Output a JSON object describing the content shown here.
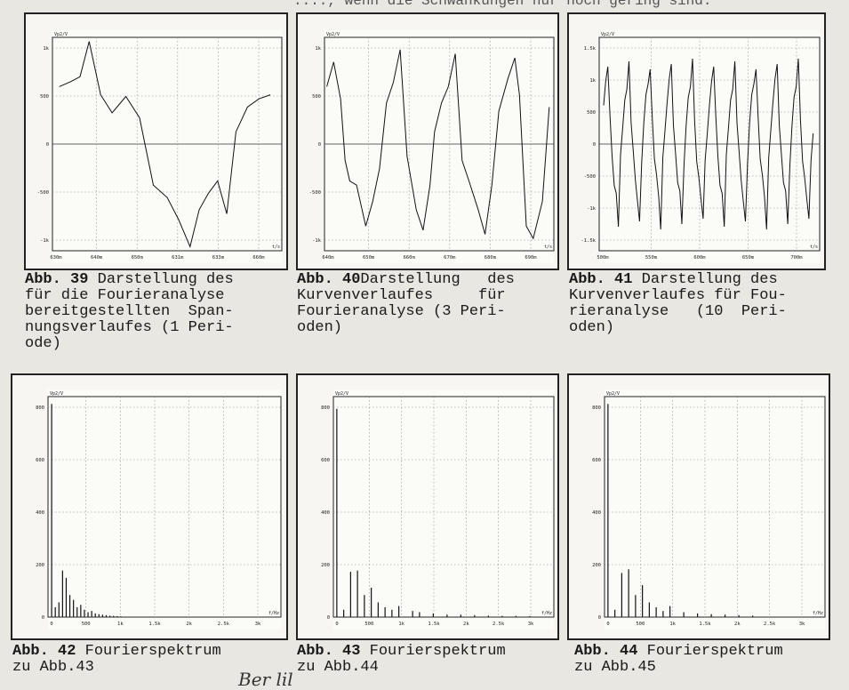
{
  "page": {
    "top_text": "...., wenn die Schwankungen nur noch gering sind.",
    "signature": "Ber lil"
  },
  "figures": [
    {
      "id": "abb39",
      "caption_num": "Abb. 39",
      "caption_lines": [
        " Darstellung des",
        "für die Fourieranalyse",
        "bereitgestellten  Span-",
        "nungsverlaufes (1 Peri-",
        "ode)"
      ],
      "unit_y": "Vp2/V",
      "unit_x": "t/s",
      "y_ticks": [
        "1k",
        "500",
        "0",
        "-500",
        "-1k"
      ],
      "x_ticks": [
        "630m",
        "640m",
        "650m",
        "631m",
        "633m",
        "660m"
      ]
    },
    {
      "id": "abb40",
      "caption_num": "Abb. 40",
      "caption_lines": [
        "Darstellung   des",
        "Kurvenverlaufes     für",
        "Fourieranalyse (3 Peri-",
        "oden)"
      ],
      "unit_y": "Vp2/V",
      "unit_x": "t/s",
      "y_ticks": [
        "1k",
        "500",
        "0",
        "-500",
        "-1k"
      ],
      "x_ticks": [
        "640m",
        "650m",
        "660m",
        "670m",
        "680m",
        "690m"
      ]
    },
    {
      "id": "abb41",
      "caption_num": "Abb. 41",
      "caption_lines": [
        " Darstellung des",
        "Kurvenverlaufes für Fou-",
        "rieranalyse   (10  Peri-",
        "oden)"
      ],
      "unit_y": "Vp2/V",
      "unit_x": "t/s",
      "y_ticks": [
        "1.5k",
        "1k",
        "500",
        "0",
        "-500",
        "-1k",
        "-1.5k"
      ],
      "x_ticks": [
        "500m",
        "550m",
        "600m",
        "650m",
        "700m"
      ]
    },
    {
      "id": "abb42",
      "caption_num": "Abb. 42",
      "caption_lines": [
        " Fourierspektrum",
        "zu Abb.43"
      ],
      "unit_y": "Vp2/V",
      "unit_x": "f/Hz",
      "y_ticks": [
        "800",
        "600",
        "400",
        "200",
        "0"
      ],
      "x_ticks": [
        "0",
        "500",
        "1k",
        "1.5k",
        "2k",
        "2.5k",
        "3k"
      ]
    },
    {
      "id": "abb43",
      "caption_num": "Abb. 43",
      "caption_lines": [
        " Fourierspektrum",
        "zu Abb.44"
      ],
      "unit_y": "Vp2/V",
      "unit_x": "f/Hz",
      "y_ticks": [
        "800",
        "600",
        "400",
        "200",
        "0"
      ],
      "x_ticks": [
        "0",
        "500",
        "1k",
        "1.5k",
        "2k",
        "2.5k",
        "3k"
      ]
    },
    {
      "id": "abb44",
      "caption_num": "Abb. 44",
      "caption_lines": [
        " Fourierspektrum",
        "zu Abb.45"
      ],
      "unit_y": "Vp2/V",
      "unit_x": "f/Hz",
      "y_ticks": [
        "800",
        "600",
        "400",
        "200",
        "0"
      ],
      "x_ticks": [
        "0",
        "500",
        "1k",
        "1.5k",
        "2k",
        "2.5k",
        "3k"
      ]
    }
  ],
  "chart_data": [
    {
      "type": "line",
      "title": "",
      "ylabel": "Vp2/V",
      "xlabel": "t/s",
      "ylim": [
        -1300,
        1300
      ],
      "xlim": [
        0,
        1
      ],
      "x": [
        0.03,
        0.08,
        0.12,
        0.16,
        0.21,
        0.26,
        0.32,
        0.38,
        0.44,
        0.5,
        0.55,
        0.6,
        0.64,
        0.68,
        0.72,
        0.76,
        0.8,
        0.85,
        0.9,
        0.95
      ],
      "y": [
        700,
        760,
        820,
        1250,
        600,
        380,
        580,
        320,
        -500,
        -650,
        -920,
        -1250,
        -800,
        -600,
        -450,
        -850,
        150,
        450,
        550,
        600
      ]
    },
    {
      "type": "line",
      "title": "",
      "ylabel": "Vp2/V",
      "xlabel": "t/s",
      "ylim": [
        -1300,
        1300
      ],
      "xlim": [
        0,
        1
      ],
      "x": [
        0.01,
        0.04,
        0.07,
        0.09,
        0.11,
        0.14,
        0.18,
        0.21,
        0.24,
        0.27,
        0.3,
        0.33,
        0.36,
        0.4,
        0.43,
        0.46,
        0.48,
        0.51,
        0.54,
        0.57,
        0.6,
        0.63,
        0.67,
        0.7,
        0.73,
        0.76,
        0.8,
        0.83,
        0.85,
        0.88,
        0.91,
        0.95,
        0.98
      ],
      "y": [
        700,
        1000,
        550,
        -200,
        -450,
        -500,
        -1000,
        -700,
        -300,
        500,
        750,
        1150,
        -150,
        -800,
        -1050,
        -500,
        150,
        500,
        700,
        1100,
        -200,
        -450,
        -800,
        -1100,
        -500,
        400,
        800,
        1050,
        600,
        -1000,
        -1150,
        -700,
        450
      ]
    },
    {
      "type": "line",
      "title": "",
      "ylabel": "Vp2/V",
      "xlabel": "t/s",
      "ylim": [
        -1600,
        1600
      ],
      "xlim": [
        0,
        1
      ],
      "periods": 10
    },
    {
      "type": "bar",
      "title": "",
      "ylabel": "Vp2/V",
      "xlabel": "f/Hz",
      "ylim": [
        0,
        900
      ],
      "xlim": [
        0,
        3200
      ],
      "x": [
        50,
        100,
        150,
        200,
        250,
        300,
        350,
        400,
        450,
        500,
        550,
        600,
        650,
        700,
        750,
        800,
        850,
        900,
        950,
        1000
      ],
      "values": [
        870,
        40,
        60,
        190,
        160,
        90,
        70,
        40,
        50,
        30,
        20,
        25,
        15,
        12,
        10,
        8,
        6,
        5,
        4,
        3
      ]
    },
    {
      "type": "bar",
      "title": "",
      "ylabel": "Vp2/V",
      "xlabel": "f/Hz",
      "ylim": [
        0,
        900
      ],
      "xlim": [
        0,
        3200
      ],
      "x": [
        50,
        150,
        250,
        350,
        450,
        550,
        650,
        750,
        850,
        950,
        1150,
        1250,
        1450,
        1650,
        1850,
        2050,
        2250,
        2450,
        2650,
        2850
      ],
      "values": [
        850,
        30,
        185,
        190,
        90,
        120,
        60,
        40,
        30,
        45,
        25,
        20,
        15,
        10,
        10,
        8,
        6,
        5,
        5,
        4
      ]
    },
    {
      "type": "bar",
      "title": "",
      "ylabel": "Vp2/V",
      "xlabel": "f/Hz",
      "ylim": [
        0,
        900
      ],
      "xlim": [
        0,
        3200
      ],
      "x": [
        50,
        150,
        250,
        350,
        450,
        550,
        650,
        750,
        850,
        950,
        1150,
        1350,
        1550,
        1750,
        1950,
        2150
      ],
      "values": [
        870,
        30,
        180,
        195,
        90,
        130,
        60,
        40,
        25,
        45,
        20,
        15,
        12,
        10,
        8,
        6
      ]
    }
  ]
}
